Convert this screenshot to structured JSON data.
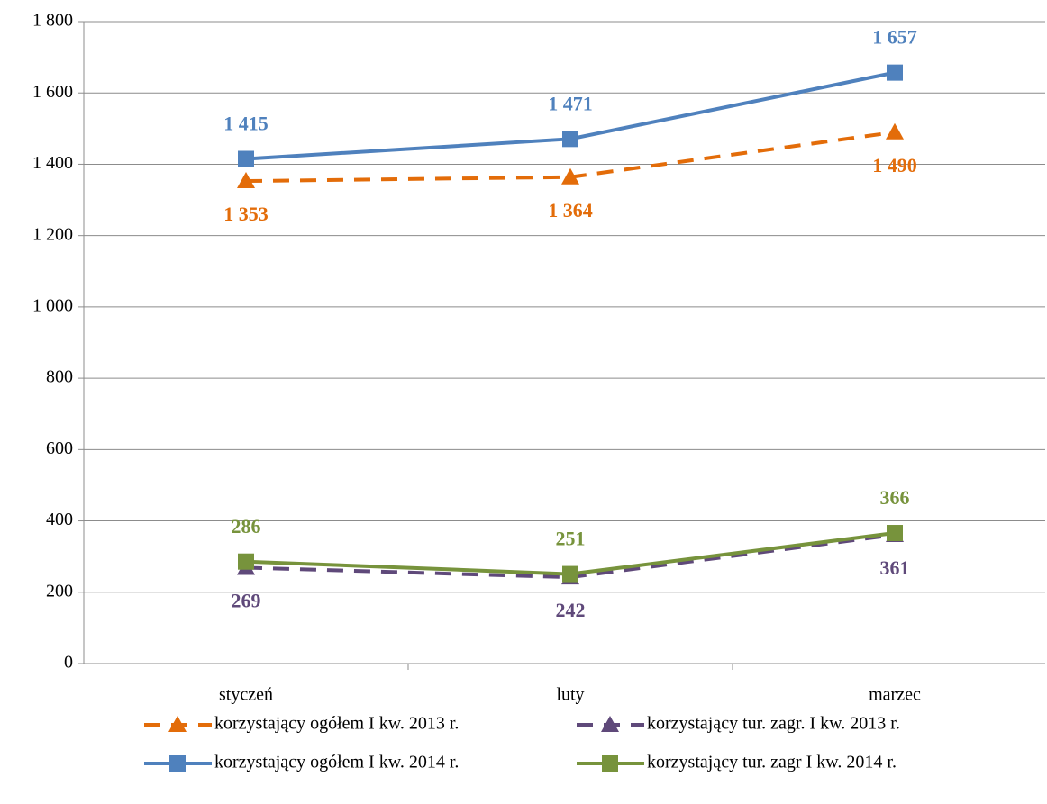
{
  "chart_data": {
    "type": "line",
    "categories": [
      "styczeń",
      "luty",
      "marzec"
    ],
    "series": [
      {
        "name": "korzystający ogółem I kw. 2013 r.",
        "color": "#E36C09",
        "dashed": true,
        "marker": "triangle",
        "label_position": "below",
        "values": [
          1353,
          1364,
          1490
        ],
        "value_labels": [
          "1 353",
          "1 364",
          "1 490"
        ]
      },
      {
        "name": "korzystający tur. zagr. I kw. 2013 r.",
        "color": "#5F497A",
        "dashed": true,
        "marker": "triangle",
        "label_position": "below",
        "values": [
          269,
          242,
          361
        ],
        "value_labels": [
          "269",
          "242",
          "361"
        ]
      },
      {
        "name": "korzystający ogółem I kw. 2014 r.",
        "color": "#4F81BD",
        "dashed": false,
        "marker": "square",
        "label_position": "above",
        "values": [
          1415,
          1471,
          1657
        ],
        "value_labels": [
          "1 415",
          "1 471",
          "1 657"
        ]
      },
      {
        "name": "korzystający tur. zagr I kw. 2014 r.",
        "color": "#77933C",
        "dashed": false,
        "marker": "square",
        "label_position": "above",
        "values": [
          286,
          251,
          366
        ],
        "value_labels": [
          "286",
          "251",
          "366"
        ]
      }
    ],
    "ylim": [
      0,
      1800
    ],
    "yticks": [
      0,
      200,
      400,
      600,
      800,
      {
        "value": 1000,
        "label": "1 000"
      },
      {
        "value": 1200,
        "label": "1 200"
      },
      {
        "value": 1400,
        "label": "1 400"
      },
      {
        "value": 1600,
        "label": "1 600"
      },
      {
        "value": 1800,
        "label": "1 800"
      }
    ],
    "grid": true,
    "legend": "bottom"
  }
}
